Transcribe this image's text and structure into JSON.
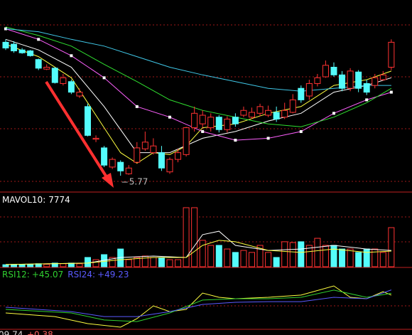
{
  "chart_data": [
    {
      "type": "candlestick",
      "up_color": "#ff3232",
      "down_color": "#54fcfc",
      "ylim": [
        5.6,
        7.6
      ],
      "open": [
        7.16,
        7.14,
        7.08,
        7.07,
        6.98,
        6.88,
        6.89,
        6.73,
        6.75,
        6.6,
        6.49,
        6.15,
        6.06,
        5.86,
        5.91,
        5.79,
        5.91,
        6.05,
        6.01,
        6.01,
        5.81,
        5.94,
        5.99,
        6.27,
        6.31,
        6.27,
        6.38,
        6.25,
        6.38,
        6.4,
        6.38,
        6.42,
        6.4,
        6.43,
        6.38,
        6.43,
        6.68,
        6.6,
        6.73,
        6.8,
        6.9,
        6.82,
        6.68,
        6.85,
        6.73,
        6.71,
        6.77,
        6.9
      ],
      "high": [
        7.19,
        7.17,
        7.1,
        7.08,
        6.99,
        6.93,
        6.9,
        6.83,
        6.77,
        6.68,
        6.52,
        6.19,
        6.08,
        5.96,
        5.93,
        5.88,
        6.12,
        6.23,
        6.16,
        6.08,
        5.96,
        6.05,
        6.28,
        6.49,
        6.45,
        6.42,
        6.4,
        6.39,
        6.42,
        6.49,
        6.48,
        6.52,
        6.5,
        6.49,
        6.53,
        6.62,
        6.71,
        6.77,
        6.83,
        6.97,
        6.95,
        6.86,
        6.89,
        6.87,
        6.77,
        6.83,
        6.86,
        7.19
      ],
      "low": [
        7.08,
        7.05,
        7.04,
        7.01,
        6.87,
        6.87,
        6.73,
        6.71,
        6.62,
        6.58,
        6.18,
        6.12,
        5.86,
        5.84,
        5.77,
        5.78,
        5.9,
        6.03,
        5.99,
        5.82,
        5.79,
        5.91,
        5.97,
        6.23,
        6.27,
        6.23,
        6.22,
        6.22,
        6.28,
        6.38,
        6.36,
        6.39,
        6.38,
        6.33,
        6.36,
        6.42,
        6.53,
        6.56,
        6.7,
        6.79,
        6.8,
        6.65,
        6.65,
        6.64,
        6.61,
        6.68,
        6.76,
        6.87
      ],
      "close": [
        7.1,
        7.07,
        7.05,
        7.02,
        6.89,
        6.9,
        6.74,
        6.79,
        6.64,
        6.64,
        6.19,
        6.16,
        5.88,
        5.94,
        5.82,
        5.85,
        6.06,
        6.12,
        6.08,
        5.85,
        5.94,
        6.01,
        6.27,
        6.42,
        6.4,
        6.38,
        6.25,
        6.36,
        6.31,
        6.45,
        6.43,
        6.49,
        6.45,
        6.36,
        6.45,
        6.56,
        6.56,
        6.73,
        6.79,
        6.92,
        6.82,
        6.68,
        6.86,
        6.68,
        6.64,
        6.79,
        6.82,
        7.16
      ],
      "series": [
        {
          "color": "#ffff40",
          "x": [
            0,
            4,
            8,
            12,
            14,
            16,
            18,
            20,
            22,
            24,
            28,
            32,
            36,
            40,
            44,
            47
          ],
          "values": [
            7.14,
            7.01,
            6.79,
            6.27,
            6.01,
            5.9,
            6.01,
            5.99,
            6.08,
            6.27,
            6.31,
            6.42,
            6.49,
            6.71,
            6.77,
            6.86
          ]
        },
        {
          "color": "#ffffff",
          "x": [
            0,
            4,
            8,
            12,
            16,
            20,
            24,
            28,
            32,
            36,
            40,
            44,
            47
          ],
          "values": [
            7.19,
            7.08,
            6.9,
            6.49,
            6.01,
            6.01,
            6.16,
            6.23,
            6.34,
            6.42,
            6.64,
            6.71,
            6.79
          ]
        },
        {
          "color": "#ff60ff",
          "markers": true,
          "x": [
            0,
            4,
            8,
            12,
            16,
            20,
            24,
            28,
            32,
            36,
            40,
            44,
            47
          ],
          "values": [
            7.3,
            7.19,
            7.02,
            6.79,
            6.49,
            6.38,
            6.23,
            6.14,
            6.16,
            6.23,
            6.42,
            6.56,
            6.64
          ]
        },
        {
          "color": "#30e030",
          "x": [
            0,
            4,
            8,
            12,
            16,
            20,
            24,
            28,
            32,
            36,
            40,
            44,
            47
          ],
          "values": [
            7.32,
            7.23,
            7.12,
            6.93,
            6.75,
            6.56,
            6.45,
            6.38,
            6.31,
            6.28,
            6.38,
            6.53,
            6.68
          ]
        },
        {
          "color": "#40c8e8",
          "x": [
            0,
            4,
            8,
            12,
            16,
            20,
            24,
            28,
            32,
            36,
            40,
            44,
            47
          ],
          "values": [
            7.3,
            7.27,
            7.19,
            7.12,
            7.01,
            6.9,
            6.82,
            6.75,
            6.68,
            6.65,
            6.68,
            6.71,
            6.71
          ]
        }
      ]
    },
    {
      "type": "bar",
      "ylim": [
        0,
        30000
      ],
      "values": [
        1000,
        1000,
        1000,
        1200,
        1500,
        1200,
        1800,
        1500,
        1800,
        1500,
        4600,
        3500,
        6000,
        4600,
        8800,
        3500,
        4600,
        5300,
        4600,
        4600,
        3500,
        3500,
        29300,
        29300,
        13100,
        10600,
        10600,
        8800,
        7100,
        8100,
        7100,
        10600,
        7100,
        4600,
        12400,
        12000,
        12400,
        10600,
        14100,
        10600,
        10600,
        8800,
        8800,
        7100,
        8800,
        8800,
        7100,
        19400
      ],
      "series": [
        {
          "color": "#ffffff",
          "x": [
            0,
            10,
            14,
            18,
            22,
            24,
            26,
            28,
            32,
            36,
            40,
            44,
            47
          ],
          "values": [
            1100,
            1800,
            4600,
            5300,
            4600,
            15900,
            17600,
            10600,
            8100,
            8800,
            10600,
            8800,
            8100
          ]
        },
        {
          "name": "MAVOL10:",
          "color": "#ffff40",
          "x": [
            0,
            10,
            14,
            18,
            22,
            24,
            26,
            28,
            32,
            36,
            40,
            44,
            47
          ],
          "values": [
            1100,
            1800,
            3500,
            4600,
            4600,
            10600,
            13100,
            12400,
            8100,
            7100,
            8800,
            7100,
            7774
          ]
        }
      ]
    },
    {
      "type": "line",
      "ylim": [
        0,
        60
      ],
      "series": [
        {
          "color": "#ffff40",
          "x": [
            0,
            6,
            10,
            14,
            16,
            18,
            20,
            22,
            24,
            26,
            28,
            32,
            36,
            40,
            42,
            44,
            46,
            47
          ],
          "values": [
            21.4,
            17.1,
            8.6,
            4.3,
            14.6,
            30,
            23.1,
            25.7,
            45.4,
            40.3,
            38.6,
            40.3,
            42.9,
            54,
            40.3,
            38.6,
            47.1,
            42.9
          ]
        },
        {
          "name": "RSI12:",
          "last_label": "+45.07",
          "color": "#30d030",
          "x": [
            0,
            8,
            12,
            16,
            20,
            24,
            28,
            32,
            36,
            40,
            44,
            47
          ],
          "values": [
            25.7,
            21.4,
            12.9,
            11.1,
            21.4,
            36.9,
            38.6,
            38.6,
            40.3,
            48.9,
            40.3,
            45.07
          ]
        },
        {
          "name": "RSI24:",
          "last_label": "+49.23",
          "color": "#5a5aff",
          "x": [
            0,
            8,
            12,
            16,
            20,
            24,
            28,
            32,
            36,
            40,
            44,
            47
          ],
          "values": [
            28.3,
            23.1,
            17.1,
            17.1,
            23.1,
            31.7,
            34.3,
            35.1,
            35.1,
            40.3,
            38.6,
            49.23
          ]
        }
      ]
    }
  ],
  "footer": [
    "09.74",
    "+0.38"
  ]
}
